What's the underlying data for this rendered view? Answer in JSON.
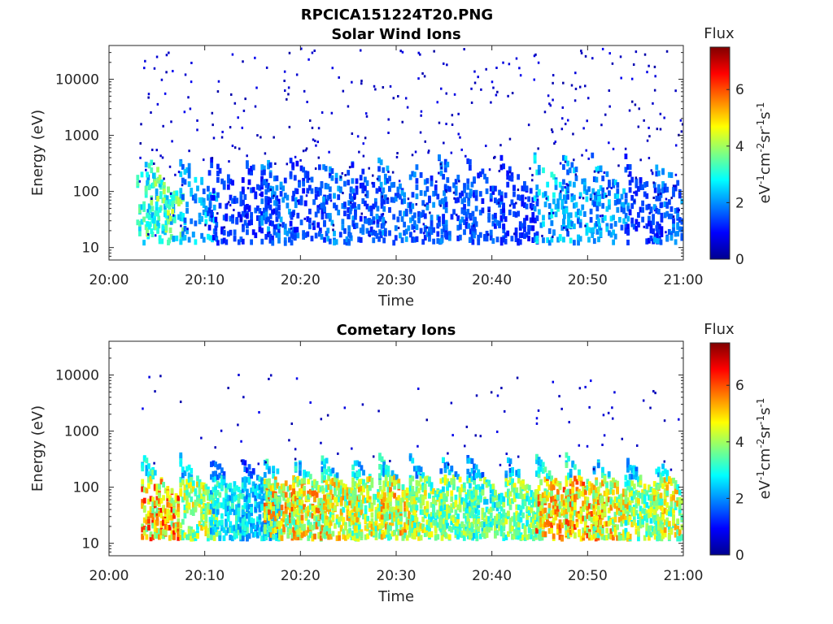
{
  "figure": {
    "title": "RPCICA151224T20.PNG"
  },
  "chart_data": [
    {
      "type": "heatmap",
      "title": "Solar Wind Ions",
      "xlabel": "Time",
      "ylabel": "Energy (eV)",
      "xticks": [
        "20:00",
        "20:10",
        "20:20",
        "20:30",
        "20:40",
        "20:50",
        "21:00"
      ],
      "xlim_minutes": [
        0,
        60
      ],
      "yscale": "log",
      "ylim": [
        6,
        40000
      ],
      "yticks": [
        {
          "value": 10,
          "label": "10"
        },
        {
          "value": 100,
          "label": "100"
        },
        {
          "value": 1000,
          "label": "1000"
        },
        {
          "value": 10000,
          "label": "10000"
        }
      ],
      "colorbar": {
        "label": "Flux",
        "units": "eV^-1 cm^-2 sr^-1 s^-1",
        "range": [
          0,
          7.5
        ],
        "ticks": [
          0,
          2,
          4,
          6
        ],
        "colormap": "jet"
      },
      "bursts": [
        {
          "t": 3.5,
          "flux": 3.5
        },
        {
          "t": 4.5,
          "flux": 4.2
        },
        {
          "t": 8.0,
          "flux": 2.8
        },
        {
          "t": 11.0,
          "flux": 1.6
        },
        {
          "t": 14.5,
          "flux": 1.6
        },
        {
          "t": 16.5,
          "flux": 2.2
        },
        {
          "t": 19.5,
          "flux": 1.6
        },
        {
          "t": 22.5,
          "flux": 2.2
        },
        {
          "t": 25.5,
          "flux": 1.8
        },
        {
          "t": 28.5,
          "flux": 2.2
        },
        {
          "t": 32.0,
          "flux": 2.0
        },
        {
          "t": 35.0,
          "flux": 2.0
        },
        {
          "t": 38.0,
          "flux": 1.8
        },
        {
          "t": 41.5,
          "flux": 1.5
        },
        {
          "t": 45.0,
          "flux": 3.0
        },
        {
          "t": 48.0,
          "flux": 2.6
        },
        {
          "t": 51.0,
          "flux": 2.6
        },
        {
          "t": 54.5,
          "flux": 1.6
        },
        {
          "t": 57.5,
          "flux": 2.2
        }
      ]
    },
    {
      "type": "heatmap",
      "title": "Cometary Ions",
      "xlabel": "Time",
      "ylabel": "Energy (eV)",
      "xticks": [
        "20:00",
        "20:10",
        "20:20",
        "20:30",
        "20:40",
        "20:50",
        "21:00"
      ],
      "xlim_minutes": [
        0,
        60
      ],
      "yscale": "log",
      "ylim": [
        6,
        40000
      ],
      "yticks": [
        {
          "value": 10,
          "label": "10"
        },
        {
          "value": 100,
          "label": "100"
        },
        {
          "value": 1000,
          "label": "1000"
        },
        {
          "value": 10000,
          "label": "10000"
        }
      ],
      "colorbar": {
        "label": "Flux",
        "units": "eV^-1 cm^-2 sr^-1 s^-1",
        "range": [
          0,
          7.5
        ],
        "ticks": [
          0,
          2,
          4,
          6
        ],
        "colormap": "jet"
      },
      "bursts": [
        {
          "t": 4.0,
          "flux": 6.3
        },
        {
          "t": 8.0,
          "flux": 5.0
        },
        {
          "t": 11.2,
          "flux": 3.4
        },
        {
          "t": 14.5,
          "flux": 3.0
        },
        {
          "t": 16.8,
          "flux": 5.8
        },
        {
          "t": 19.8,
          "flux": 5.6
        },
        {
          "t": 22.8,
          "flux": 5.4
        },
        {
          "t": 26.0,
          "flux": 5.2
        },
        {
          "t": 28.8,
          "flux": 5.6
        },
        {
          "t": 32.0,
          "flux": 4.8
        },
        {
          "t": 35.2,
          "flux": 4.6
        },
        {
          "t": 38.0,
          "flux": 4.2
        },
        {
          "t": 42.0,
          "flux": 4.6
        },
        {
          "t": 45.2,
          "flux": 6.0
        },
        {
          "t": 48.3,
          "flux": 6.0
        },
        {
          "t": 51.2,
          "flux": 5.6
        },
        {
          "t": 54.5,
          "flux": 4.8
        },
        {
          "t": 57.5,
          "flux": 5.2
        }
      ]
    }
  ]
}
